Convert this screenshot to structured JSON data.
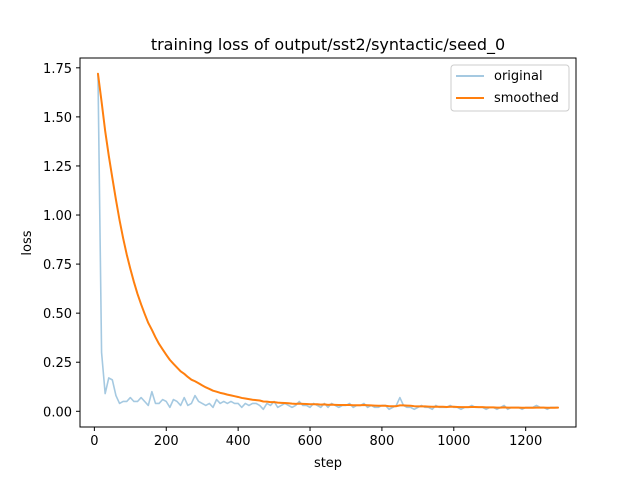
{
  "chart_data": {
    "type": "line",
    "title": "training loss of output/sst2/syntactic/seed_0",
    "xlabel": "step",
    "ylabel": "loss",
    "xlim": [
      -40,
      1340
    ],
    "ylim": [
      -0.08,
      1.8
    ],
    "xticks": [
      0,
      200,
      400,
      600,
      800,
      1000,
      1200
    ],
    "yticks": [
      0.0,
      0.25,
      0.5,
      0.75,
      1.0,
      1.25,
      1.5,
      1.75
    ],
    "xtick_labels": [
      "0",
      "200",
      "400",
      "600",
      "800",
      "1000",
      "1200"
    ],
    "ytick_labels": [
      "0.00",
      "0.25",
      "0.50",
      "0.75",
      "1.00",
      "1.25",
      "1.50",
      "1.75"
    ],
    "grid": false,
    "legend_position": "top-right",
    "series": [
      {
        "name": "original",
        "color": "#1f77b4",
        "opacity": 0.4,
        "x": [
          10,
          20,
          30,
          40,
          50,
          60,
          70,
          80,
          90,
          100,
          110,
          120,
          130,
          140,
          150,
          160,
          170,
          180,
          190,
          200,
          210,
          220,
          230,
          240,
          250,
          260,
          270,
          280,
          290,
          300,
          310,
          320,
          330,
          340,
          350,
          360,
          370,
          380,
          390,
          400,
          410,
          420,
          430,
          440,
          450,
          460,
          470,
          480,
          490,
          500,
          510,
          520,
          530,
          540,
          550,
          560,
          570,
          580,
          590,
          600,
          610,
          620,
          630,
          640,
          650,
          660,
          670,
          680,
          690,
          700,
          710,
          720,
          730,
          740,
          750,
          760,
          770,
          780,
          790,
          800,
          810,
          820,
          830,
          840,
          850,
          860,
          870,
          880,
          890,
          900,
          910,
          920,
          930,
          940,
          950,
          960,
          970,
          980,
          990,
          1000,
          1010,
          1020,
          1030,
          1040,
          1050,
          1060,
          1070,
          1080,
          1090,
          1100,
          1110,
          1120,
          1130,
          1140,
          1150,
          1160,
          1170,
          1180,
          1190,
          1200,
          1210,
          1220,
          1230,
          1240,
          1250,
          1260,
          1270,
          1280,
          1290
        ],
        "values": [
          1.72,
          0.3,
          0.09,
          0.17,
          0.16,
          0.08,
          0.04,
          0.05,
          0.05,
          0.07,
          0.05,
          0.05,
          0.07,
          0.05,
          0.03,
          0.1,
          0.04,
          0.04,
          0.06,
          0.05,
          0.02,
          0.06,
          0.05,
          0.03,
          0.07,
          0.03,
          0.04,
          0.08,
          0.05,
          0.04,
          0.03,
          0.04,
          0.02,
          0.06,
          0.04,
          0.05,
          0.04,
          0.05,
          0.04,
          0.04,
          0.02,
          0.04,
          0.03,
          0.04,
          0.04,
          0.03,
          0.01,
          0.04,
          0.03,
          0.05,
          0.02,
          0.03,
          0.04,
          0.03,
          0.02,
          0.03,
          0.05,
          0.03,
          0.03,
          0.02,
          0.04,
          0.03,
          0.02,
          0.04,
          0.02,
          0.04,
          0.03,
          0.02,
          0.03,
          0.03,
          0.04,
          0.02,
          0.03,
          0.03,
          0.04,
          0.02,
          0.03,
          0.02,
          0.02,
          0.03,
          0.03,
          0.01,
          0.02,
          0.03,
          0.07,
          0.03,
          0.02,
          0.02,
          0.01,
          0.02,
          0.03,
          0.02,
          0.02,
          0.01,
          0.03,
          0.02,
          0.02,
          0.02,
          0.03,
          0.02,
          0.02,
          0.01,
          0.02,
          0.02,
          0.03,
          0.02,
          0.02,
          0.02,
          0.01,
          0.02,
          0.02,
          0.01,
          0.02,
          0.03,
          0.01,
          0.02,
          0.02,
          0.02,
          0.01,
          0.02,
          0.02,
          0.02,
          0.03,
          0.02,
          0.02,
          0.01,
          0.02,
          0.02,
          0.02
        ]
      },
      {
        "name": "smoothed",
        "color": "#ff7f0e",
        "opacity": 1,
        "x": [
          10,
          20,
          30,
          40,
          50,
          60,
          70,
          80,
          90,
          100,
          110,
          120,
          130,
          140,
          150,
          160,
          170,
          180,
          190,
          200,
          210,
          220,
          230,
          240,
          250,
          260,
          270,
          280,
          290,
          300,
          310,
          320,
          330,
          340,
          350,
          360,
          370,
          380,
          390,
          400,
          410,
          420,
          430,
          440,
          450,
          460,
          470,
          480,
          490,
          500,
          510,
          520,
          530,
          540,
          550,
          560,
          570,
          580,
          590,
          600,
          610,
          620,
          630,
          640,
          650,
          660,
          670,
          680,
          690,
          700,
          710,
          720,
          730,
          740,
          750,
          760,
          770,
          780,
          790,
          800,
          810,
          820,
          830,
          840,
          850,
          860,
          870,
          880,
          890,
          900,
          910,
          920,
          930,
          940,
          950,
          960,
          970,
          980,
          990,
          1000,
          1010,
          1020,
          1030,
          1040,
          1050,
          1060,
          1070,
          1080,
          1090,
          1100,
          1110,
          1120,
          1130,
          1140,
          1150,
          1160,
          1170,
          1180,
          1190,
          1200,
          1210,
          1220,
          1230,
          1240,
          1250,
          1260,
          1270,
          1280,
          1290
        ],
        "values": [
          1.72,
          1.578,
          1.429,
          1.303,
          1.189,
          1.078,
          0.974,
          0.882,
          0.799,
          0.726,
          0.659,
          0.598,
          0.545,
          0.496,
          0.45,
          0.415,
          0.377,
          0.343,
          0.315,
          0.288,
          0.262,
          0.242,
          0.223,
          0.204,
          0.191,
          0.175,
          0.161,
          0.153,
          0.143,
          0.132,
          0.122,
          0.114,
          0.105,
          0.1,
          0.094,
          0.09,
          0.085,
          0.081,
          0.077,
          0.073,
          0.068,
          0.065,
          0.062,
          0.059,
          0.057,
          0.055,
          0.05,
          0.049,
          0.047,
          0.047,
          0.044,
          0.043,
          0.042,
          0.041,
          0.039,
          0.038,
          0.039,
          0.038,
          0.037,
          0.036,
          0.036,
          0.036,
          0.034,
          0.035,
          0.033,
          0.034,
          0.033,
          0.032,
          0.032,
          0.032,
          0.032,
          0.031,
          0.031,
          0.031,
          0.032,
          0.031,
          0.03,
          0.029,
          0.028,
          0.028,
          0.028,
          0.026,
          0.026,
          0.026,
          0.03,
          0.03,
          0.029,
          0.028,
          0.026,
          0.025,
          0.025,
          0.025,
          0.024,
          0.023,
          0.023,
          0.023,
          0.023,
          0.022,
          0.023,
          0.023,
          0.022,
          0.021,
          0.021,
          0.021,
          0.022,
          0.022,
          0.021,
          0.021,
          0.02,
          0.02,
          0.02,
          0.019,
          0.019,
          0.02,
          0.019,
          0.019,
          0.019,
          0.019,
          0.018,
          0.018,
          0.018,
          0.018,
          0.019,
          0.019,
          0.019,
          0.018,
          0.018,
          0.018,
          0.019
        ]
      }
    ]
  }
}
